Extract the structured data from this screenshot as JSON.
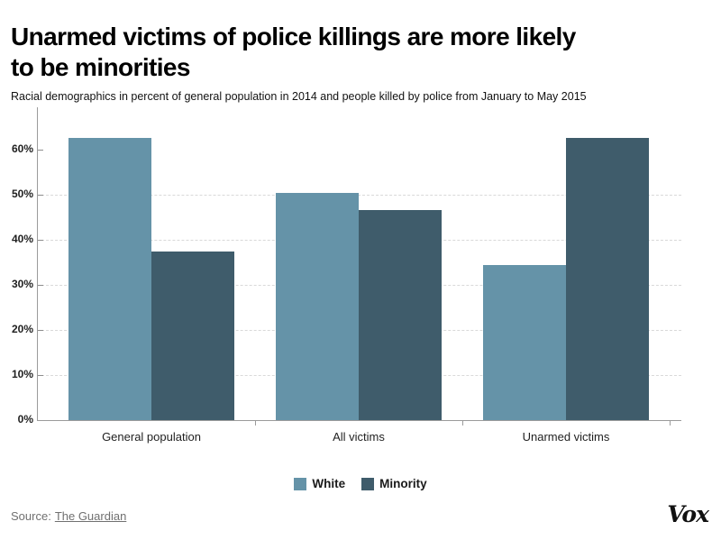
{
  "header": {
    "title": "Unarmed victims of police killings are more likely to be minorities",
    "subtitle": "Racial demographics in percent of general population in 2014 and people killed by police from January to May 2015"
  },
  "chart_data": {
    "type": "bar",
    "categories": [
      "General population",
      "All victims",
      "Unarmed victims"
    ],
    "series": [
      {
        "name": "White",
        "color": "#6593a8",
        "values": [
          62.7,
          50.5,
          34.4
        ]
      },
      {
        "name": "Minority",
        "color": "#3f5c6b",
        "values": [
          37.5,
          46.7,
          62.7
        ]
      }
    ],
    "title": "",
    "xlabel": "",
    "ylabel": "",
    "ylim": [
      0,
      69
    ],
    "yticks": [
      0,
      10,
      20,
      30,
      40,
      50,
      60
    ],
    "ytick_suffix": "%",
    "grid": "horizontal dashed at 10%-50%",
    "legend_position": "bottom-center"
  },
  "footer": {
    "source_label": "Source:",
    "source_link": "The Guardian",
    "brand": "Vox"
  }
}
